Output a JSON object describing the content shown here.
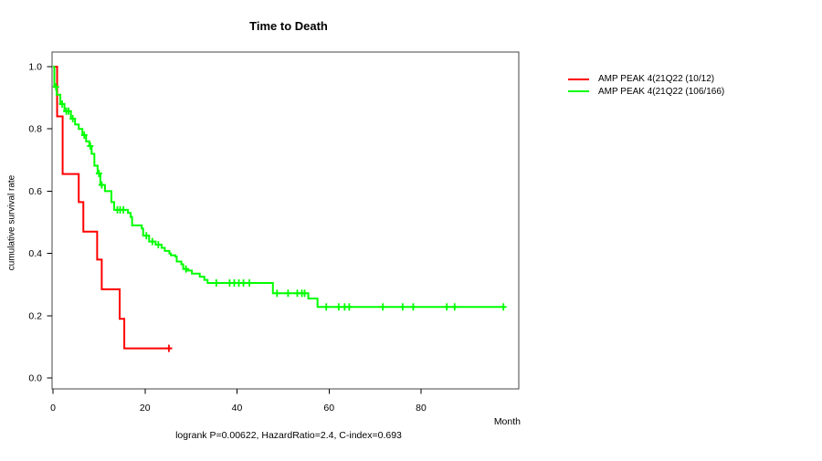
{
  "chart": {
    "title": "Time to Death",
    "ylabel": "cumulative survival rate",
    "xlabel": "Month",
    "footer": "logrank P=0.00622, HazardRatio=2.4, C-index=0.693"
  },
  "legend": [
    {
      "label": "AMP PEAK 4(21Q22 (10/12)",
      "color": "#ff0000"
    },
    {
      "label": "AMP PEAK 4(21Q22 (106/166)",
      "color": "#00ff00"
    }
  ],
  "chart_data": {
    "type": "line",
    "subtype": "kaplan-meier-step",
    "title": "Time to Death",
    "xlabel": "Month",
    "ylabel": "cumulative survival rate",
    "xlim": [
      0,
      101
    ],
    "ylim": [
      0,
      1.0
    ],
    "grid": false,
    "legend_position": "right-outside",
    "xticks": [
      {
        "v": 0,
        "label": "0"
      },
      {
        "v": 20,
        "label": "20"
      },
      {
        "v": 40,
        "label": "40"
      },
      {
        "v": 60,
        "label": "60"
      },
      {
        "v": 80,
        "label": "80"
      }
    ],
    "yticks": [
      {
        "v": 0.0,
        "label": "0.0"
      },
      {
        "v": 0.2,
        "label": "0.2"
      },
      {
        "v": 0.4,
        "label": "0.4"
      },
      {
        "v": 0.6,
        "label": "0.6"
      },
      {
        "v": 0.8,
        "label": "0.8"
      },
      {
        "v": 1.0,
        "label": "1.0"
      }
    ],
    "series": [
      {
        "name": "AMP PEAK 4(21Q22 (10/12)",
        "color": "#ff0000",
        "end_month": 25.9,
        "steps": [
          [
            0,
            1.0
          ],
          [
            0.9,
            0.84
          ],
          [
            2.1,
            0.655
          ],
          [
            5.6,
            0.565
          ],
          [
            6.6,
            0.47
          ],
          [
            9.6,
            0.38
          ],
          [
            10.6,
            0.285
          ],
          [
            14.5,
            0.19
          ],
          [
            15.5,
            0.095
          ]
        ],
        "censors": [
          [
            25.2,
            0.095
          ]
        ]
      },
      {
        "name": "AMP PEAK 4(21Q22 (106/166)",
        "color": "#00ff00",
        "end_month": 98.2,
        "steps": [
          [
            0,
            1.0
          ],
          [
            0.3,
            0.935
          ],
          [
            0.8,
            0.91
          ],
          [
            1.6,
            0.88
          ],
          [
            2.5,
            0.857
          ],
          [
            3.9,
            0.833
          ],
          [
            4.8,
            0.814
          ],
          [
            5.6,
            0.8
          ],
          [
            6.4,
            0.78
          ],
          [
            7.2,
            0.76
          ],
          [
            7.9,
            0.745
          ],
          [
            8.4,
            0.72
          ],
          [
            9.0,
            0.682
          ],
          [
            9.7,
            0.657
          ],
          [
            10.3,
            0.62
          ],
          [
            11.3,
            0.6
          ],
          [
            12.7,
            0.565
          ],
          [
            13.3,
            0.54
          ],
          [
            16.3,
            0.53
          ],
          [
            16.9,
            0.517
          ],
          [
            17.2,
            0.49
          ],
          [
            19.3,
            0.48
          ],
          [
            19.6,
            0.457
          ],
          [
            20.9,
            0.438
          ],
          [
            22.3,
            0.428
          ],
          [
            23.6,
            0.418
          ],
          [
            24.3,
            0.408
          ],
          [
            25.3,
            0.4
          ],
          [
            25.6,
            0.394
          ],
          [
            26.6,
            0.39
          ],
          [
            26.9,
            0.374
          ],
          [
            27.9,
            0.365
          ],
          [
            28.3,
            0.35
          ],
          [
            29.2,
            0.345
          ],
          [
            30.2,
            0.335
          ],
          [
            31.9,
            0.325
          ],
          [
            32.9,
            0.315
          ],
          [
            33.6,
            0.305
          ],
          [
            47.8,
            0.272
          ],
          [
            55.5,
            0.255
          ],
          [
            57.5,
            0.228
          ]
        ],
        "censors": [
          [
            0.65,
            0.935
          ],
          [
            2.0,
            0.88
          ],
          [
            2.9,
            0.857
          ],
          [
            3.4,
            0.857
          ],
          [
            4.3,
            0.833
          ],
          [
            6.8,
            0.78
          ],
          [
            8.1,
            0.745
          ],
          [
            10.0,
            0.657
          ],
          [
            10.6,
            0.62
          ],
          [
            14.0,
            0.54
          ],
          [
            14.6,
            0.54
          ],
          [
            15.3,
            0.54
          ],
          [
            20.3,
            0.457
          ],
          [
            21.6,
            0.438
          ],
          [
            22.9,
            0.428
          ],
          [
            28.9,
            0.35
          ],
          [
            35.5,
            0.305
          ],
          [
            38.4,
            0.305
          ],
          [
            39.4,
            0.305
          ],
          [
            40.4,
            0.305
          ],
          [
            41.4,
            0.305
          ],
          [
            42.7,
            0.305
          ],
          [
            48.7,
            0.272
          ],
          [
            51.1,
            0.272
          ],
          [
            53.1,
            0.272
          ],
          [
            54.1,
            0.272
          ],
          [
            54.7,
            0.272
          ],
          [
            59.4,
            0.228
          ],
          [
            62.1,
            0.228
          ],
          [
            63.4,
            0.228
          ],
          [
            64.4,
            0.228
          ],
          [
            71.7,
            0.228
          ],
          [
            76.0,
            0.228
          ],
          [
            78.3,
            0.228
          ],
          [
            85.6,
            0.228
          ],
          [
            87.3,
            0.228
          ],
          [
            97.9,
            0.228
          ]
        ]
      }
    ]
  }
}
